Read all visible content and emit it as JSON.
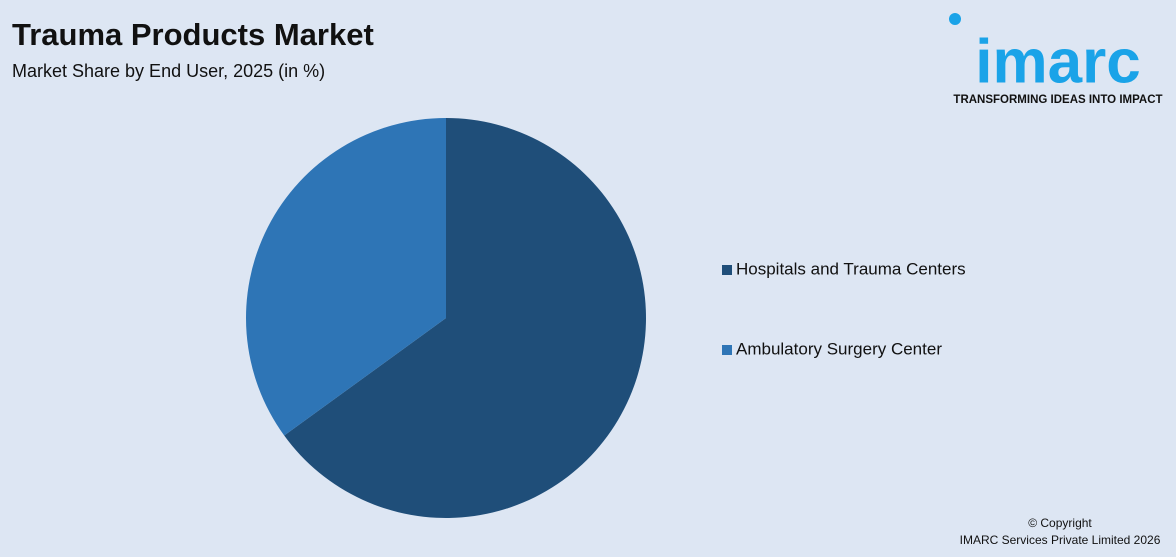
{
  "chart_data": {
    "type": "pie",
    "title": "Trauma Products Market",
    "subtitle": "Market Share by End User, 2025 (in %)",
    "categories": [
      "Hospitals and Trauma Centers",
      "Ambulatory Surgery Center"
    ],
    "values": [
      65,
      35
    ],
    "colors": [
      "#1f4e79",
      "#2e75b6"
    ],
    "legend": "right"
  },
  "logo": {
    "text": "imarc",
    "tagline": "TRANSFORMING IDEAS INTO IMPACT"
  },
  "footer": {
    "copyright": "© Copyright",
    "company": "IMARC Services Private Limited 2026"
  }
}
